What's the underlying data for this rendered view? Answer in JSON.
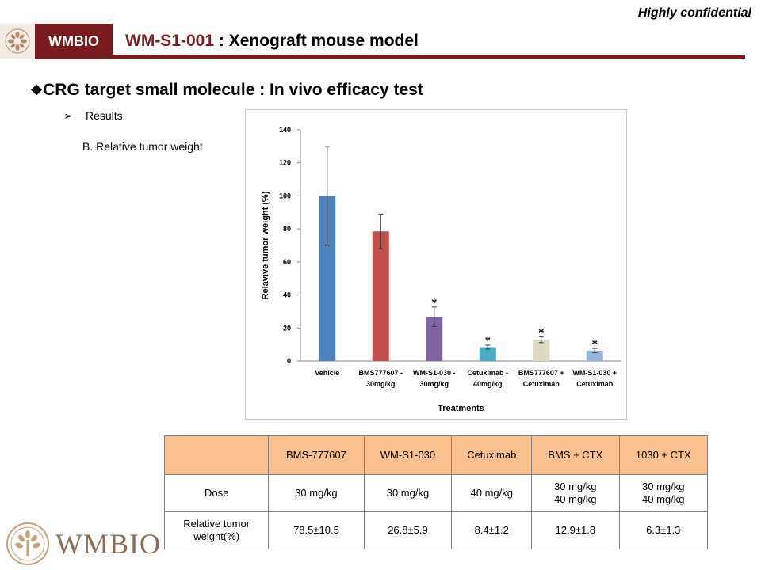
{
  "header": {
    "confidential": "Highly confidential",
    "brand": "WMBIO",
    "title_code": "WM-S1-001",
    "title_rest": " : Xenograft mouse model"
  },
  "section": {
    "marker": "❖",
    "title": "CRG target small molecule : In vivo efficacy test",
    "bullet_marker": "➢",
    "bullet": "Results",
    "subhead": "B. Relative tumor weight"
  },
  "chart_data": {
    "type": "bar",
    "xlabel": "Treatments",
    "ylabel": "Relavive tumor weight (%)",
    "ylim": [
      0,
      140
    ],
    "yticks": [
      0,
      20,
      40,
      60,
      80,
      100,
      120,
      140
    ],
    "grid": false,
    "categories": [
      [
        "Vehicle"
      ],
      [
        "BMS777607 -",
        "30mg/kg"
      ],
      [
        "WM-S1-030 -",
        "30mg/kg"
      ],
      [
        "Cetuximab -",
        "40mg/kg"
      ],
      [
        "BMS777607 +",
        "Cetuximab"
      ],
      [
        "WM-S1-030 +",
        "Cetuximab"
      ]
    ],
    "values": [
      100,
      78.5,
      26.8,
      8.4,
      12.9,
      6.3
    ],
    "errors": [
      30,
      10.5,
      5.9,
      1.2,
      1.8,
      1.3
    ],
    "significance": [
      "",
      "",
      "*",
      "*",
      "*",
      "*"
    ],
    "colors": [
      "#4f81bd",
      "#c0504d",
      "#8064a2",
      "#4bacc6",
      "#ddd9c3",
      "#95b3d7"
    ]
  },
  "table": {
    "header": [
      "",
      "BMS-777607",
      "WM-S1-030",
      "Cetuximab",
      "BMS + CTX",
      "1030 + CTX"
    ],
    "rows": [
      {
        "label": "Dose",
        "cells": [
          [
            "30 mg/kg"
          ],
          [
            "30 mg/kg"
          ],
          [
            "40 mg/kg"
          ],
          [
            "30 mg/kg",
            "40 mg/kg"
          ],
          [
            "30 mg/kg",
            "40 mg/kg"
          ]
        ]
      },
      {
        "label_lines": [
          "Relative tumor",
          "weight(%)"
        ],
        "cells": [
          [
            "78.5±10.5"
          ],
          [
            "26.8±5.9"
          ],
          [
            "8.4±1.2"
          ],
          [
            "12.9±1.8"
          ],
          [
            "6.3±1.3"
          ]
        ]
      }
    ]
  },
  "footer": {
    "wordmark": "WMBIO"
  }
}
